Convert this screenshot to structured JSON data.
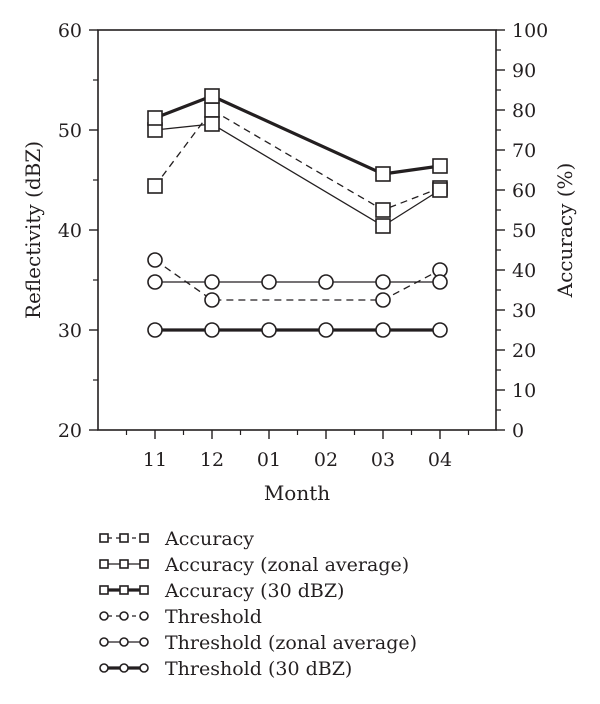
{
  "chart_data": {
    "type": "line",
    "xlabel": "Month",
    "ylabel_left": "Reflectivity (dBZ)",
    "ylabel_right": "Accuracy (%)",
    "categories": [
      "11",
      "12",
      "01",
      "02",
      "03",
      "04"
    ],
    "ylim_left": [
      20,
      60
    ],
    "yticks_left": [
      20,
      30,
      40,
      50,
      60
    ],
    "ylim_right": [
      0,
      100
    ],
    "yticks_right": [
      0,
      10,
      20,
      30,
      40,
      50,
      60,
      70,
      80,
      90,
      100
    ],
    "grid": false,
    "legend_position": "bottom",
    "series": [
      {
        "name": "Accuracy",
        "axis": "right",
        "marker": "square",
        "line": "dashed",
        "x": [
          "11",
          "12",
          "03",
          "04"
        ],
        "values": [
          61,
          80,
          55,
          60.5
        ]
      },
      {
        "name": "Accuracy (zonal average)",
        "axis": "right",
        "marker": "square",
        "line": "solid",
        "x": [
          "11",
          "12",
          "03",
          "04"
        ],
        "values": [
          75,
          76.5,
          51,
          60
        ]
      },
      {
        "name": "Accuracy (30 dBZ)",
        "axis": "right",
        "marker": "square",
        "line": "bold",
        "x": [
          "11",
          "12",
          "03",
          "04"
        ],
        "values": [
          78,
          83.5,
          64,
          66
        ]
      },
      {
        "name": "Threshold",
        "axis": "left",
        "marker": "circle",
        "line": "dashed",
        "x": [
          "11",
          "12",
          "03",
          "04"
        ],
        "values": [
          37,
          33,
          33,
          36
        ]
      },
      {
        "name": "Threshold (zonal average)",
        "axis": "left",
        "marker": "circle",
        "line": "solid",
        "x": [
          "11",
          "12",
          "01",
          "02",
          "03",
          "04"
        ],
        "values": [
          34.8,
          34.8,
          34.8,
          34.8,
          34.8,
          34.8
        ]
      },
      {
        "name": "Threshold (30 dBZ)",
        "axis": "left",
        "marker": "circle",
        "line": "bold",
        "x": [
          "11",
          "12",
          "01",
          "02",
          "03",
          "04"
        ],
        "values": [
          30,
          30,
          30,
          30,
          30,
          30
        ]
      }
    ]
  }
}
